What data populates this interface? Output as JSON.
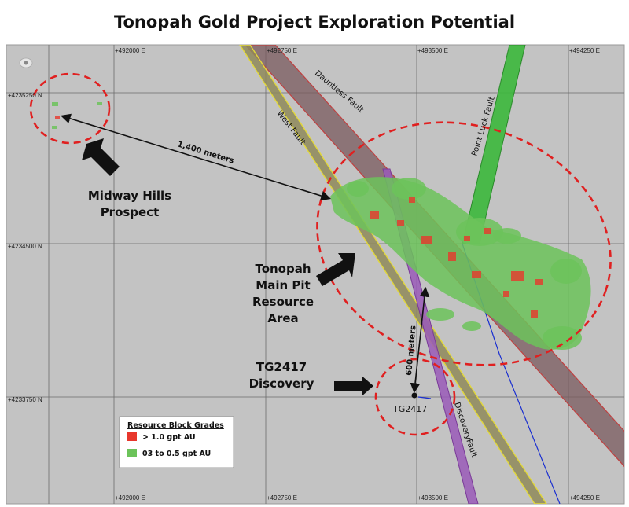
{
  "title": "Tonopah Gold Project Exploration Potential",
  "grid": {
    "eastings": [
      "+492000 E",
      "+492750 E",
      "+493500 E",
      "+494250 E"
    ],
    "northings": [
      "+4235250 N",
      "+4234500 N",
      "+4233750 N"
    ]
  },
  "faults": {
    "dauntless": "Dauntless Fault",
    "west": "West Fault",
    "point_luck": "Point Luck Fault",
    "discovery": "DiscoveryFault"
  },
  "callouts": {
    "midway_line1": "Midway Hills",
    "midway_line2": "Prospect",
    "tonopah_line1": "Tonopah",
    "tonopah_line2": "Main Pit",
    "tonopah_line3": "Resource",
    "tonopah_line4": "Area",
    "tg_line1": "TG2417",
    "tg_line2": "Discovery"
  },
  "distances": {
    "midway_to_pit": "1,400 meters",
    "pit_to_discovery": "600 meters"
  },
  "drill_hole": "TG2417",
  "legend": {
    "title": "Resource Block Grades",
    "high": "> 1.0 gpt AU",
    "low": "03 to 0.5 gpt AU"
  },
  "colors": {
    "map_background": "#c3c3c3",
    "high_grade": "#e8372c",
    "low_grade": "#6cc35a",
    "dauntless_fault": "#7a5a5e",
    "west_fault": "#8f8a5a",
    "point_luck_fault": "#3cb83c",
    "discovery_fault": "#9a5ab8",
    "circles": "#e02020",
    "blue_line": "#1a2fd0"
  }
}
